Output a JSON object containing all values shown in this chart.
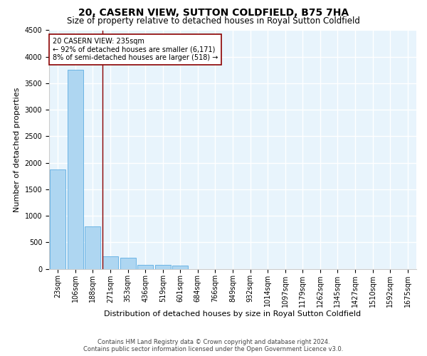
{
  "title": "20, CASERN VIEW, SUTTON COLDFIELD, B75 7HA",
  "subtitle": "Size of property relative to detached houses in Royal Sutton Coldfield",
  "xlabel": "Distribution of detached houses by size in Royal Sutton Coldfield",
  "ylabel": "Number of detached properties",
  "footer_line1": "Contains HM Land Registry data © Crown copyright and database right 2024.",
  "footer_line2": "Contains public sector information licensed under the Open Government Licence v3.0.",
  "bar_labels": [
    "23sqm",
    "106sqm",
    "188sqm",
    "271sqm",
    "353sqm",
    "436sqm",
    "519sqm",
    "601sqm",
    "684sqm",
    "766sqm",
    "849sqm",
    "932sqm",
    "1014sqm",
    "1097sqm",
    "1179sqm",
    "1262sqm",
    "1345sqm",
    "1427sqm",
    "1510sqm",
    "1592sqm",
    "1675sqm"
  ],
  "bar_values": [
    1870,
    3760,
    800,
    230,
    210,
    80,
    70,
    60,
    0,
    0,
    0,
    0,
    0,
    0,
    0,
    0,
    0,
    0,
    0,
    0,
    0
  ],
  "bar_color": "#AED6F1",
  "bar_edge_color": "#5DADE2",
  "property_line_color": "#8B0000",
  "annotation_text": "20 CASERN VIEW: 235sqm\n← 92% of detached houses are smaller (6,171)\n8% of semi-detached houses are larger (518) →",
  "annotation_box_color": "white",
  "annotation_box_edge_color": "#8B0000",
  "ylim": [
    0,
    4500
  ],
  "background_color": "#E8F4FC",
  "grid_color": "white",
  "title_fontsize": 10,
  "subtitle_fontsize": 8.5,
  "xlabel_fontsize": 8,
  "ylabel_fontsize": 8,
  "tick_fontsize": 7,
  "annotation_fontsize": 7,
  "footer_fontsize": 6
}
